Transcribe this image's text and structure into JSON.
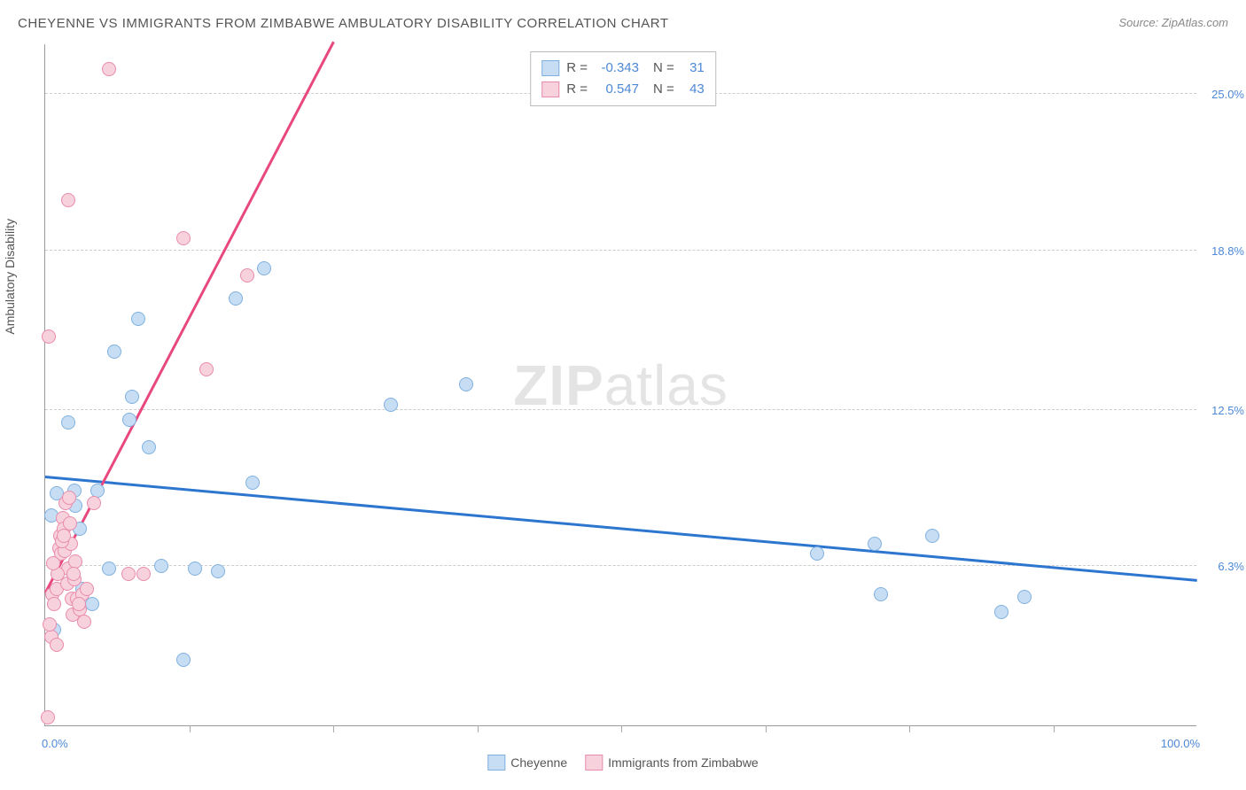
{
  "title": "CHEYENNE VS IMMIGRANTS FROM ZIMBABWE AMBULATORY DISABILITY CORRELATION CHART",
  "source": "Source: ZipAtlas.com",
  "watermark_bold": "ZIP",
  "watermark_light": "atlas",
  "ylabel": "Ambulatory Disability",
  "chart": {
    "type": "scatter",
    "xlim": [
      0,
      100
    ],
    "ylim": [
      0,
      27
    ],
    "x_min_label": "0.0%",
    "x_max_label": "100.0%",
    "y_ticks": [
      6.3,
      12.5,
      18.8,
      25.0
    ],
    "y_tick_labels": [
      "6.3%",
      "12.5%",
      "18.8%",
      "25.0%"
    ],
    "x_minor_step": 12.5,
    "background_color": "#ffffff",
    "grid_color": "#cccccc",
    "axis_color": "#999999",
    "tick_label_color": "#4d88d6",
    "marker_radius": 8,
    "marker_stroke_width": 1.5,
    "series": [
      {
        "name": "Cheyenne",
        "fill": "#c7ddf4",
        "stroke": "#7fb1e0",
        "trend_color": "#2d76cf",
        "r": -0.343,
        "n": 31,
        "trend": {
          "x1": 0,
          "y1": 9.8,
          "x2": 100,
          "y2": 5.7
        },
        "points": [
          [
            0.5,
            8.3
          ],
          [
            1.0,
            9.2
          ],
          [
            2.5,
            9.3
          ],
          [
            2.6,
            8.7
          ],
          [
            3.0,
            7.8
          ],
          [
            5.5,
            6.2
          ],
          [
            6.0,
            14.8
          ],
          [
            8.1,
            16.1
          ],
          [
            7.3,
            12.1
          ],
          [
            7.5,
            13.0
          ],
          [
            9.0,
            11.0
          ],
          [
            12.0,
            2.6
          ],
          [
            13.0,
            6.2
          ],
          [
            16.5,
            16.9
          ],
          [
            18.0,
            9.6
          ],
          [
            19.0,
            18.1
          ],
          [
            30.0,
            12.7
          ],
          [
            36.5,
            13.5
          ],
          [
            67.0,
            6.8
          ],
          [
            72.0,
            7.2
          ],
          [
            72.5,
            5.2
          ],
          [
            77.0,
            7.5
          ],
          [
            83.0,
            4.5
          ],
          [
            85.0,
            5.1
          ],
          [
            3.2,
            5.4
          ],
          [
            4.1,
            4.8
          ],
          [
            2.0,
            12.0
          ],
          [
            4.5,
            9.3
          ],
          [
            10.1,
            6.3
          ],
          [
            15.0,
            6.1
          ],
          [
            0.8,
            3.8
          ]
        ]
      },
      {
        "name": "Immigrants from Zimbabwe",
        "fill": "#f7d2dc",
        "stroke": "#e98bac",
        "trend_color": "#e8487e",
        "r": 0.547,
        "n": 43,
        "trend": {
          "x1": 0,
          "y1": 5.2,
          "x2": 25,
          "y2": 27.0
        },
        "points": [
          [
            0.2,
            0.3
          ],
          [
            0.5,
            3.5
          ],
          [
            0.6,
            5.2
          ],
          [
            0.8,
            4.8
          ],
          [
            1.0,
            5.4
          ],
          [
            1.2,
            7.0
          ],
          [
            1.3,
            7.5
          ],
          [
            1.4,
            6.8
          ],
          [
            1.5,
            8.2
          ],
          [
            1.6,
            7.8
          ],
          [
            1.7,
            6.9
          ],
          [
            1.8,
            8.8
          ],
          [
            1.9,
            5.6
          ],
          [
            2.0,
            6.2
          ],
          [
            2.1,
            9.0
          ],
          [
            2.2,
            7.2
          ],
          [
            2.3,
            5.0
          ],
          [
            2.4,
            4.4
          ],
          [
            2.5,
            5.8
          ],
          [
            2.6,
            6.5
          ],
          [
            2.8,
            5.0
          ],
          [
            3.0,
            4.6
          ],
          [
            3.2,
            5.2
          ],
          [
            3.4,
            4.1
          ],
          [
            3.6,
            5.4
          ],
          [
            0.3,
            15.4
          ],
          [
            4.2,
            8.8
          ],
          [
            5.5,
            26.0
          ],
          [
            7.2,
            6.0
          ],
          [
            8.5,
            6.0
          ],
          [
            12.0,
            19.3
          ],
          [
            14.0,
            14.1
          ],
          [
            17.5,
            17.8
          ],
          [
            2.0,
            20.8
          ],
          [
            1.0,
            3.2
          ],
          [
            0.4,
            4.0
          ],
          [
            1.1,
            6.0
          ],
          [
            1.45,
            7.3
          ],
          [
            2.15,
            8.0
          ],
          [
            0.7,
            6.4
          ],
          [
            1.65,
            7.5
          ],
          [
            2.45,
            6.0
          ],
          [
            2.9,
            4.8
          ]
        ]
      }
    ]
  },
  "legend_top": {
    "rows": [
      {
        "swatch_fill": "#c7ddf4",
        "swatch_stroke": "#7fb1e0",
        "r_label": "R =",
        "r_val": "-0.343",
        "n_label": "N =",
        "n_val": "31"
      },
      {
        "swatch_fill": "#f7d2dc",
        "swatch_stroke": "#e98bac",
        "r_label": "R =",
        "r_val": "0.547",
        "n_label": "N =",
        "n_val": "43"
      }
    ]
  },
  "legend_bottom": {
    "items": [
      {
        "swatch_fill": "#c7ddf4",
        "swatch_stroke": "#7fb1e0",
        "label": "Cheyenne"
      },
      {
        "swatch_fill": "#f7d2dc",
        "swatch_stroke": "#e98bac",
        "label": "Immigrants from Zimbabwe"
      }
    ]
  }
}
